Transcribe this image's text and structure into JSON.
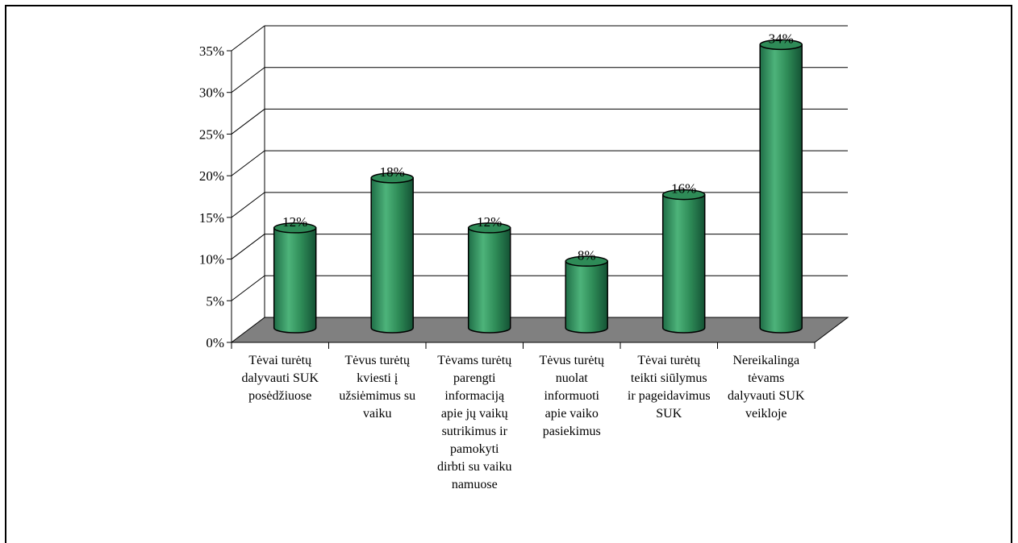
{
  "chart_data": {
    "type": "bar",
    "style": "3d-cylinder",
    "bar_color": "#2E8B57",
    "floor_color": "#808080",
    "ylim": [
      0,
      35
    ],
    "yticks": [
      "0%",
      "5%",
      "10%",
      "15%",
      "20%",
      "25%",
      "30%",
      "35%"
    ],
    "ytick_values": [
      0,
      5,
      10,
      15,
      20,
      25,
      30,
      35
    ],
    "grid": true,
    "legend": "none",
    "categories": [
      "Tėvai turėtų dalyvauti SUK posėdžiuose",
      "Tėvus turėtų kviesti į užsiėmimus su vaiku",
      "Tėvams turėtų parengti informaciją apie jų vaikų sutrikimus ir pamokyti dirbti su vaiku namuose",
      "Tėvus turėtų nuolat informuoti apie vaiko pasiekimus",
      "Tėvai turėtų teikti siūlymus ir pageidavimus SUK",
      "Nereikalinga tėvams dalyvauti SUK veikloje"
    ],
    "values": [
      12,
      18,
      12,
      8,
      16,
      34
    ],
    "data_labels": [
      "12%",
      "18%",
      "12%",
      "8%",
      "16%",
      "34%"
    ]
  }
}
